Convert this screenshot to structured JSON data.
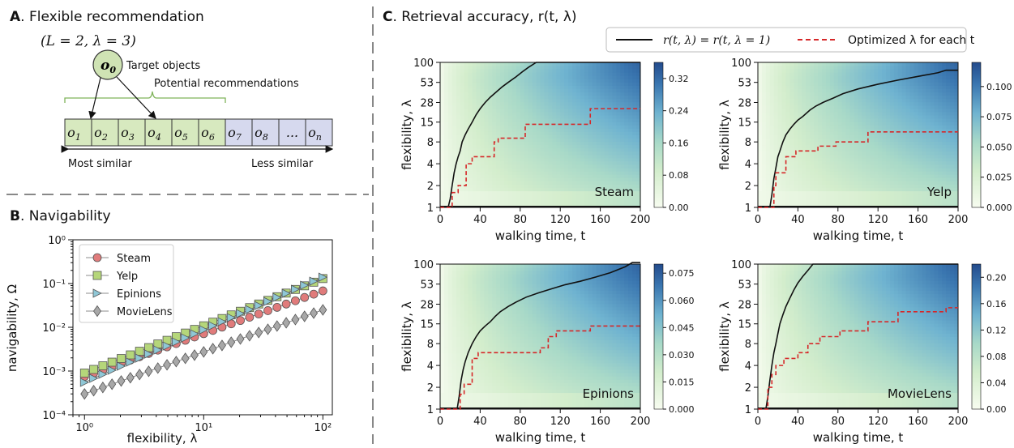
{
  "panel_a": {
    "letter": "A",
    "title": ". Flexible recommendation",
    "params": "(L = 2, λ = 3)",
    "target_symbol": "o",
    "target_subscript": "0",
    "target_label": "Target objects",
    "potential_label": "Potential recommendations",
    "cells": [
      {
        "sym": "o",
        "sub": "1",
        "group": "potential"
      },
      {
        "sym": "o",
        "sub": "2",
        "group": "potential"
      },
      {
        "sym": "o",
        "sub": "3",
        "group": "potential"
      },
      {
        "sym": "o",
        "sub": "4",
        "group": "potential"
      },
      {
        "sym": "o",
        "sub": "5",
        "group": "potential"
      },
      {
        "sym": "o",
        "sub": "6",
        "group": "potential"
      },
      {
        "sym": "o",
        "sub": "7",
        "group": "other"
      },
      {
        "sym": "o",
        "sub": "8",
        "group": "other"
      },
      {
        "sym": "...",
        "sub": "",
        "group": "other"
      },
      {
        "sym": "o",
        "sub": "n",
        "group": "other"
      }
    ],
    "most_similar": "Most similar",
    "less_similar": "Less similar",
    "colors": {
      "potential": "#d7e9bf",
      "other": "#d6d9ee",
      "target": "#cfe3b4"
    }
  },
  "chart_data": [
    {
      "panel": "B",
      "type": "scatter",
      "title": ". Navigability",
      "xlabel": "flexibility, λ",
      "ylabel": "navigability, Ω",
      "xscale": "log",
      "yscale": "log",
      "xlim": [
        0.8,
        120
      ],
      "ylim": [
        0.0001,
        1
      ],
      "xticks": [
        "10⁰",
        "10¹",
        "10²"
      ],
      "yticks": [
        "10⁻⁴",
        "10⁻³",
        "10⁻²",
        "10⁻¹",
        "10⁰"
      ],
      "legend_position": "top-left",
      "series": [
        {
          "name": "Steam",
          "marker": "circle",
          "color": "#e07b7b",
          "start": 0.00075,
          "end": 0.068
        },
        {
          "name": "Yelp",
          "marker": "square",
          "color": "#b5d67a",
          "start": 0.0009,
          "end": 0.13
        },
        {
          "name": "Epinions",
          "marker": "triangle-right",
          "color": "#8fc7d6",
          "start": 0.00055,
          "end": 0.14
        },
        {
          "name": "MovieLens",
          "marker": "diamond",
          "color": "#a8a8a8",
          "start": 0.0003,
          "end": 0.025
        }
      ]
    },
    {
      "panel": "C",
      "type": "heatmap",
      "title": ". Retrieval accuracy, r(t, λ)",
      "legend": {
        "solid": "r(t, λ) = r(t, λ = 1)",
        "dashed": "Optimized λ for each t"
      },
      "xlabel": "walking time, t",
      "ylabel": "flexibility, λ",
      "xticks": [
        "0",
        "40",
        "80",
        "120",
        "160",
        "200"
      ],
      "yticks": [
        "1",
        "2",
        "4",
        "8",
        "15",
        "28",
        "53",
        "100"
      ],
      "subplots": [
        {
          "name": "Steam",
          "colorbar": [
            "0.00",
            "0.08",
            "0.16",
            "0.24",
            "0.32"
          ],
          "vmax": 0.36,
          "solid": [
            [
              8,
              1
            ],
            [
              10,
              1.3
            ],
            [
              12,
              2
            ],
            [
              14,
              3
            ],
            [
              16,
              4
            ],
            [
              18,
              5
            ],
            [
              20,
              6
            ],
            [
              22,
              8
            ],
            [
              25,
              10
            ],
            [
              28,
              12
            ],
            [
              32,
              15
            ],
            [
              36,
              19
            ],
            [
              40,
              23
            ],
            [
              45,
              28
            ],
            [
              50,
              33
            ],
            [
              56,
              39
            ],
            [
              62,
              46
            ],
            [
              68,
              53
            ],
            [
              75,
              62
            ],
            [
              82,
              74
            ],
            [
              88,
              85
            ],
            [
              96,
              100
            ],
            [
              200,
              100
            ]
          ],
          "dashed": [
            [
              0,
              1
            ],
            [
              12,
              1
            ],
            [
              12,
              1.6
            ],
            [
              18,
              1.6
            ],
            [
              18,
              2
            ],
            [
              26,
              2
            ],
            [
              26,
              4
            ],
            [
              32,
              4
            ],
            [
              32,
              5
            ],
            [
              54,
              5
            ],
            [
              54,
              8
            ],
            [
              58,
              8
            ],
            [
              58,
              9
            ],
            [
              85,
              9
            ],
            [
              85,
              14
            ],
            [
              150,
              14
            ],
            [
              150,
              23
            ],
            [
              200,
              23
            ]
          ]
        },
        {
          "name": "Yelp",
          "colorbar": [
            "0.000",
            "0.025",
            "0.050",
            "0.075",
            "0.100"
          ],
          "vmax": 0.12,
          "solid": [
            [
              12,
              1
            ],
            [
              14,
              1.5
            ],
            [
              16,
              2.5
            ],
            [
              18,
              3.5
            ],
            [
              20,
              5
            ],
            [
              22,
              6
            ],
            [
              25,
              8
            ],
            [
              28,
              10
            ],
            [
              32,
              12
            ],
            [
              36,
              14
            ],
            [
              40,
              16
            ],
            [
              45,
              18
            ],
            [
              52,
              22
            ],
            [
              58,
              25
            ],
            [
              65,
              28
            ],
            [
              75,
              32
            ],
            [
              85,
              37
            ],
            [
              100,
              43
            ],
            [
              120,
              50
            ],
            [
              140,
              57
            ],
            [
              160,
              64
            ],
            [
              180,
              72
            ],
            [
              188,
              78
            ],
            [
              200,
              78
            ]
          ],
          "dashed": [
            [
              0,
              1
            ],
            [
              16,
              1
            ],
            [
              16,
              2
            ],
            [
              18,
              2
            ],
            [
              18,
              3
            ],
            [
              28,
              3
            ],
            [
              28,
              5
            ],
            [
              38,
              5
            ],
            [
              38,
              6
            ],
            [
              60,
              6
            ],
            [
              60,
              7
            ],
            [
              78,
              7
            ],
            [
              78,
              8
            ],
            [
              110,
              8
            ],
            [
              110,
              11
            ],
            [
              200,
              11
            ]
          ]
        },
        {
          "name": "Epinions",
          "colorbar": [
            "0.000",
            "0.015",
            "0.030",
            "0.045",
            "0.060",
            "0.075"
          ],
          "vmax": 0.08,
          "solid": [
            [
              17,
              1
            ],
            [
              19,
              1.5
            ],
            [
              21,
              2.5
            ],
            [
              23,
              3.5
            ],
            [
              25,
              4.5
            ],
            [
              28,
              6
            ],
            [
              32,
              8
            ],
            [
              36,
              10
            ],
            [
              40,
              12
            ],
            [
              45,
              14
            ],
            [
              50,
              16
            ],
            [
              55,
              19
            ],
            [
              60,
              22
            ],
            [
              68,
              26
            ],
            [
              76,
              30
            ],
            [
              86,
              35
            ],
            [
              98,
              40
            ],
            [
              110,
              45
            ],
            [
              125,
              52
            ],
            [
              140,
              58
            ],
            [
              155,
              66
            ],
            [
              170,
              76
            ],
            [
              185,
              92
            ],
            [
              192,
              105
            ],
            [
              200,
              105
            ]
          ],
          "dashed": [
            [
              0,
              1
            ],
            [
              20,
              1
            ],
            [
              20,
              1.6
            ],
            [
              24,
              1.6
            ],
            [
              24,
              2.2
            ],
            [
              32,
              2.2
            ],
            [
              32,
              5
            ],
            [
              38,
              5
            ],
            [
              38,
              6
            ],
            [
              100,
              6
            ],
            [
              100,
              7
            ],
            [
              108,
              7
            ],
            [
              108,
              10
            ],
            [
              116,
              10
            ],
            [
              116,
              12
            ],
            [
              150,
              12
            ],
            [
              150,
              14
            ],
            [
              200,
              14
            ]
          ]
        },
        {
          "name": "MovieLens",
          "colorbar": [
            "0.00",
            "0.04",
            "0.08",
            "0.12",
            "0.16",
            "0.20"
          ],
          "vmax": 0.22,
          "solid": [
            [
              8,
              1
            ],
            [
              10,
              1.5
            ],
            [
              12,
              2.5
            ],
            [
              14,
              4
            ],
            [
              16,
              6
            ],
            [
              18,
              8
            ],
            [
              20,
              11
            ],
            [
              22,
              15
            ],
            [
              25,
              20
            ],
            [
              28,
              26
            ],
            [
              32,
              34
            ],
            [
              36,
              44
            ],
            [
              40,
              55
            ],
            [
              45,
              68
            ],
            [
              50,
              82
            ],
            [
              55,
              100
            ],
            [
              200,
              100
            ]
          ],
          "dashed": [
            [
              0,
              1
            ],
            [
              10,
              1
            ],
            [
              10,
              2
            ],
            [
              14,
              2
            ],
            [
              14,
              3
            ],
            [
              18,
              3
            ],
            [
              18,
              4
            ],
            [
              26,
              4
            ],
            [
              26,
              5
            ],
            [
              40,
              5
            ],
            [
              40,
              6
            ],
            [
              50,
              6
            ],
            [
              50,
              8
            ],
            [
              62,
              8
            ],
            [
              62,
              10
            ],
            [
              82,
              10
            ],
            [
              82,
              12
            ],
            [
              110,
              12
            ],
            [
              110,
              16
            ],
            [
              140,
              16
            ],
            [
              140,
              22
            ],
            [
              188,
              22
            ],
            [
              188,
              25
            ],
            [
              200,
              25
            ]
          ]
        }
      ]
    }
  ]
}
